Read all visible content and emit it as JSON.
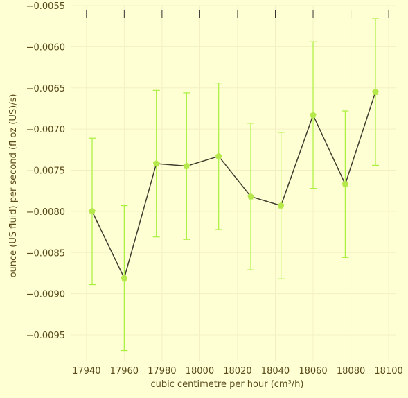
{
  "chart_data": {
    "type": "line",
    "xlabel": "cubic centimetre per hour (cm³/h)",
    "ylabel": "ounce (US fluid) per second (fl oz (US)/s)",
    "xlim": [
      17932,
      18104
    ],
    "ylim": [
      -0.00982,
      -0.0055
    ],
    "x_ticks": [
      17940,
      17960,
      17980,
      18000,
      18020,
      18040,
      18060,
      18080,
      18100
    ],
    "x_tick_labels": [
      "17940",
      "17960",
      "17980",
      "18000",
      "18020",
      "18040",
      "18060",
      "18080",
      "18100"
    ],
    "y_ticks": [
      -0.0055,
      -0.006,
      -0.0065,
      -0.007,
      -0.0075,
      -0.008,
      -0.0085,
      -0.009,
      -0.0095
    ],
    "y_tick_labels": [
      "−0.0055",
      "−0.0060",
      "−0.0065",
      "−0.0070",
      "−0.0075",
      "−0.0080",
      "−0.0085",
      "−0.0090",
      "−0.0095"
    ],
    "grid": true,
    "series": [
      {
        "x": [
          17943,
          17960,
          17977,
          17993,
          18010,
          18027,
          18043,
          18060,
          18077,
          18093
        ],
        "y": [
          -0.008,
          -0.00881,
          -0.00742,
          -0.00745,
          -0.00733,
          -0.00782,
          -0.00793,
          -0.00683,
          -0.00767,
          -0.00655
        ],
        "err": [
          0.00089,
          0.00088,
          0.00089,
          0.00089,
          0.00089,
          0.00089,
          0.00089,
          0.00089,
          0.00089,
          0.00089
        ],
        "line_color": "#3d3d2e",
        "marker_color": "#b5e84a",
        "error_color": "#a8f03c"
      }
    ]
  }
}
